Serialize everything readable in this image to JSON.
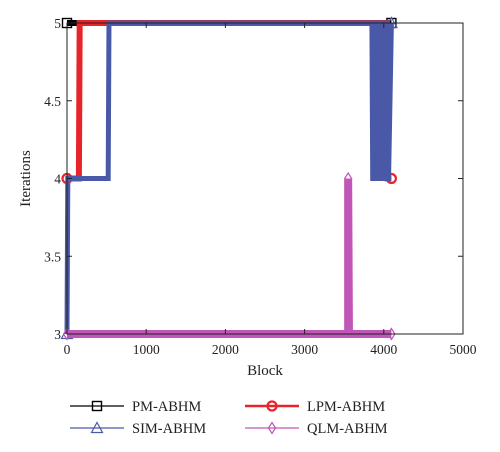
{
  "chart_data": {
    "type": "line",
    "xlabel": "Block",
    "ylabel": "Iterations",
    "xlim": [
      0,
      5000
    ],
    "ylim": [
      3,
      5
    ],
    "xticks": [
      0,
      1000,
      2000,
      3000,
      4000,
      5000
    ],
    "xtick_labels": [
      "0",
      "1000",
      "2000",
      "3000",
      "4000",
      "5000"
    ],
    "yticks": [
      3,
      3.5,
      4,
      4.5,
      5
    ],
    "ytick_labels": [
      "3",
      "3.5",
      "4",
      "4.5",
      "5"
    ],
    "grid": false,
    "legend_position": "bottom",
    "series": [
      {
        "name": "PM-ABHM",
        "color": "#000000",
        "marker": "square",
        "x": [
          0,
          4096
        ],
        "y": [
          5,
          5
        ]
      },
      {
        "name": "LPM-ABHM",
        "color": "#e8242b",
        "marker": "circle",
        "x": [
          0,
          150,
          160,
          500,
          4040,
          4050,
          4096
        ],
        "y": [
          4,
          4,
          5,
          5,
          5,
          4,
          4
        ]
      },
      {
        "name": "SIM-ABHM",
        "color": "#4a59a7",
        "marker": "triangle",
        "x": [
          0,
          10,
          520,
          530,
          3850,
          3860,
          3870,
          3880,
          3920,
          3930,
          3940,
          3950,
          3980,
          3990,
          4000,
          4010,
          4040,
          4050,
          4060,
          4096
        ],
        "y": [
          3,
          4,
          4,
          5,
          5,
          4,
          4,
          5,
          5,
          4,
          4,
          5,
          5,
          4,
          4,
          5,
          5,
          4,
          4,
          5
        ]
      },
      {
        "name": "QLM-ABHM",
        "color": "#c056b8",
        "marker": "diamond",
        "x": [
          0,
          3550,
          3550,
          3560,
          4096
        ],
        "y": [
          3,
          3,
          4,
          3,
          3
        ]
      }
    ]
  }
}
